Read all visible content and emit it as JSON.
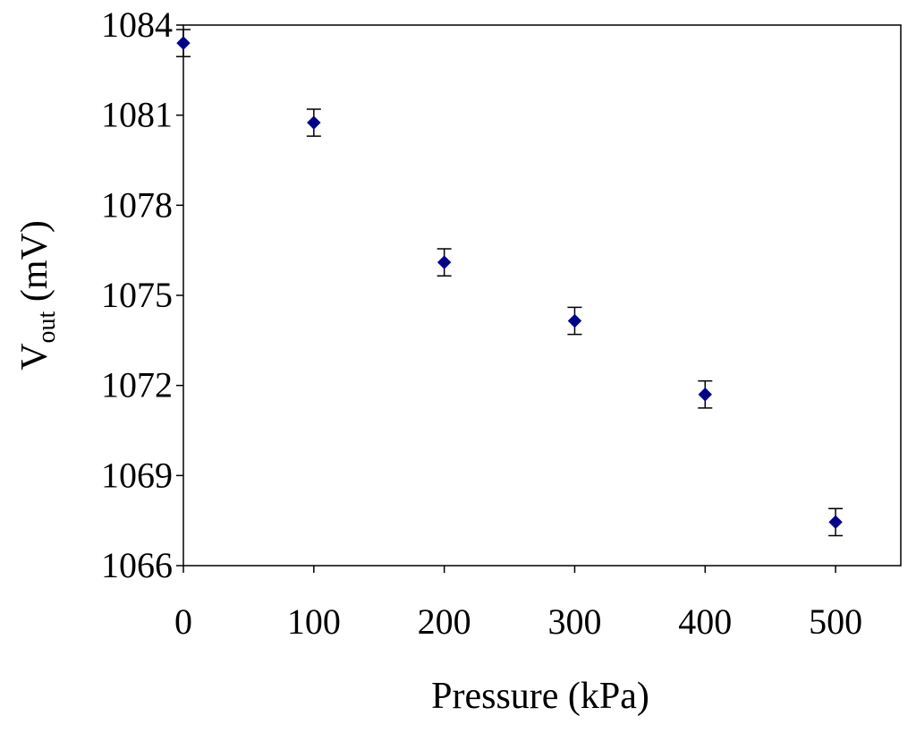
{
  "chart_data": {
    "type": "scatter",
    "title": "",
    "xlabel": "Pressure (kPa)",
    "ylabel": {
      "main": "V",
      "subscript": "out",
      "unit": " (mV)"
    },
    "xlim": [
      0,
      550
    ],
    "ylim": [
      1066,
      1084
    ],
    "x_ticks": [
      0,
      100,
      200,
      300,
      400,
      500
    ],
    "y_ticks": [
      1066,
      1069,
      1072,
      1075,
      1078,
      1081,
      1084
    ],
    "grid": false,
    "legend": "none",
    "marker": "diamond",
    "marker_color": "#00008B",
    "series": [
      {
        "x": [
          0,
          100,
          200,
          300,
          400,
          500
        ],
        "y": [
          1083.4,
          1080.75,
          1076.1,
          1074.15,
          1071.7,
          1067.45
        ],
        "error": [
          0.45,
          0.45,
          0.45,
          0.45,
          0.45,
          0.45
        ]
      }
    ]
  }
}
